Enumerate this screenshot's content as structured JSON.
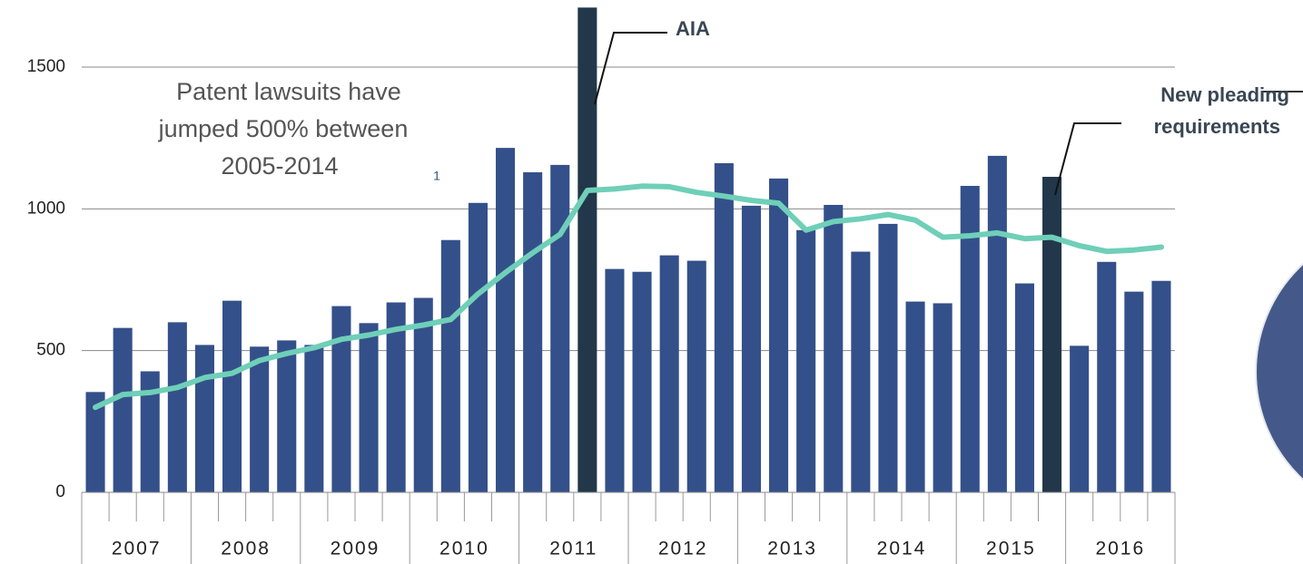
{
  "chart_data": {
    "type": "bar",
    "categories": [
      null,
      null,
      null,
      null,
      null,
      null,
      null,
      null,
      null,
      null,
      null,
      null,
      null,
      null,
      null,
      null,
      null,
      null,
      null,
      null,
      null,
      null,
      null,
      null,
      null,
      null,
      null,
      null,
      null,
      null,
      null,
      null,
      null,
      null,
      null,
      null,
      null,
      null,
      null,
      null
    ],
    "years": [
      "2007",
      "2008",
      "2009",
      "2010",
      "2011",
      "2012",
      "2013",
      "2014",
      "2015",
      "2016"
    ],
    "values": [
      354,
      580,
      427,
      600,
      520,
      676,
      514,
      536,
      520,
      657,
      597,
      670,
      686,
      890,
      1021,
      1215,
      1129,
      1155,
      1710,
      788,
      778,
      836,
      817,
      1161,
      1011,
      1107,
      925,
      1014,
      849,
      947,
      673,
      667,
      1081,
      1187,
      737,
      1113,
      517,
      813,
      708,
      746
    ],
    "color": "#34508a",
    "highlight_indices": [
      18,
      35
    ],
    "highlight_color": "#22384a",
    "line": {
      "color": "#6fcfb8",
      "values": [
        300,
        345,
        352,
        370,
        405,
        420,
        465,
        490,
        510,
        540,
        555,
        575,
        590,
        610,
        700,
        775,
        845,
        910,
        1065,
        1070,
        1080,
        1078,
        1058,
        1045,
        1030,
        1020,
        925,
        955,
        965,
        980,
        960,
        900,
        905,
        915,
        895,
        900,
        870,
        850,
        855,
        865
      ]
    },
    "ylim": [
      0,
      1500
    ],
    "yticks": [
      0,
      500,
      1000,
      1500
    ],
    "grid": true,
    "annotation": [
      "Patent lawsuits have",
      "jumped 500% between",
      "2005-2014"
    ],
    "footnote": "1",
    "callouts": [
      {
        "text": [
          "AIA"
        ]
      },
      {
        "text": [
          "New pleading",
          "requirements"
        ]
      }
    ]
  }
}
